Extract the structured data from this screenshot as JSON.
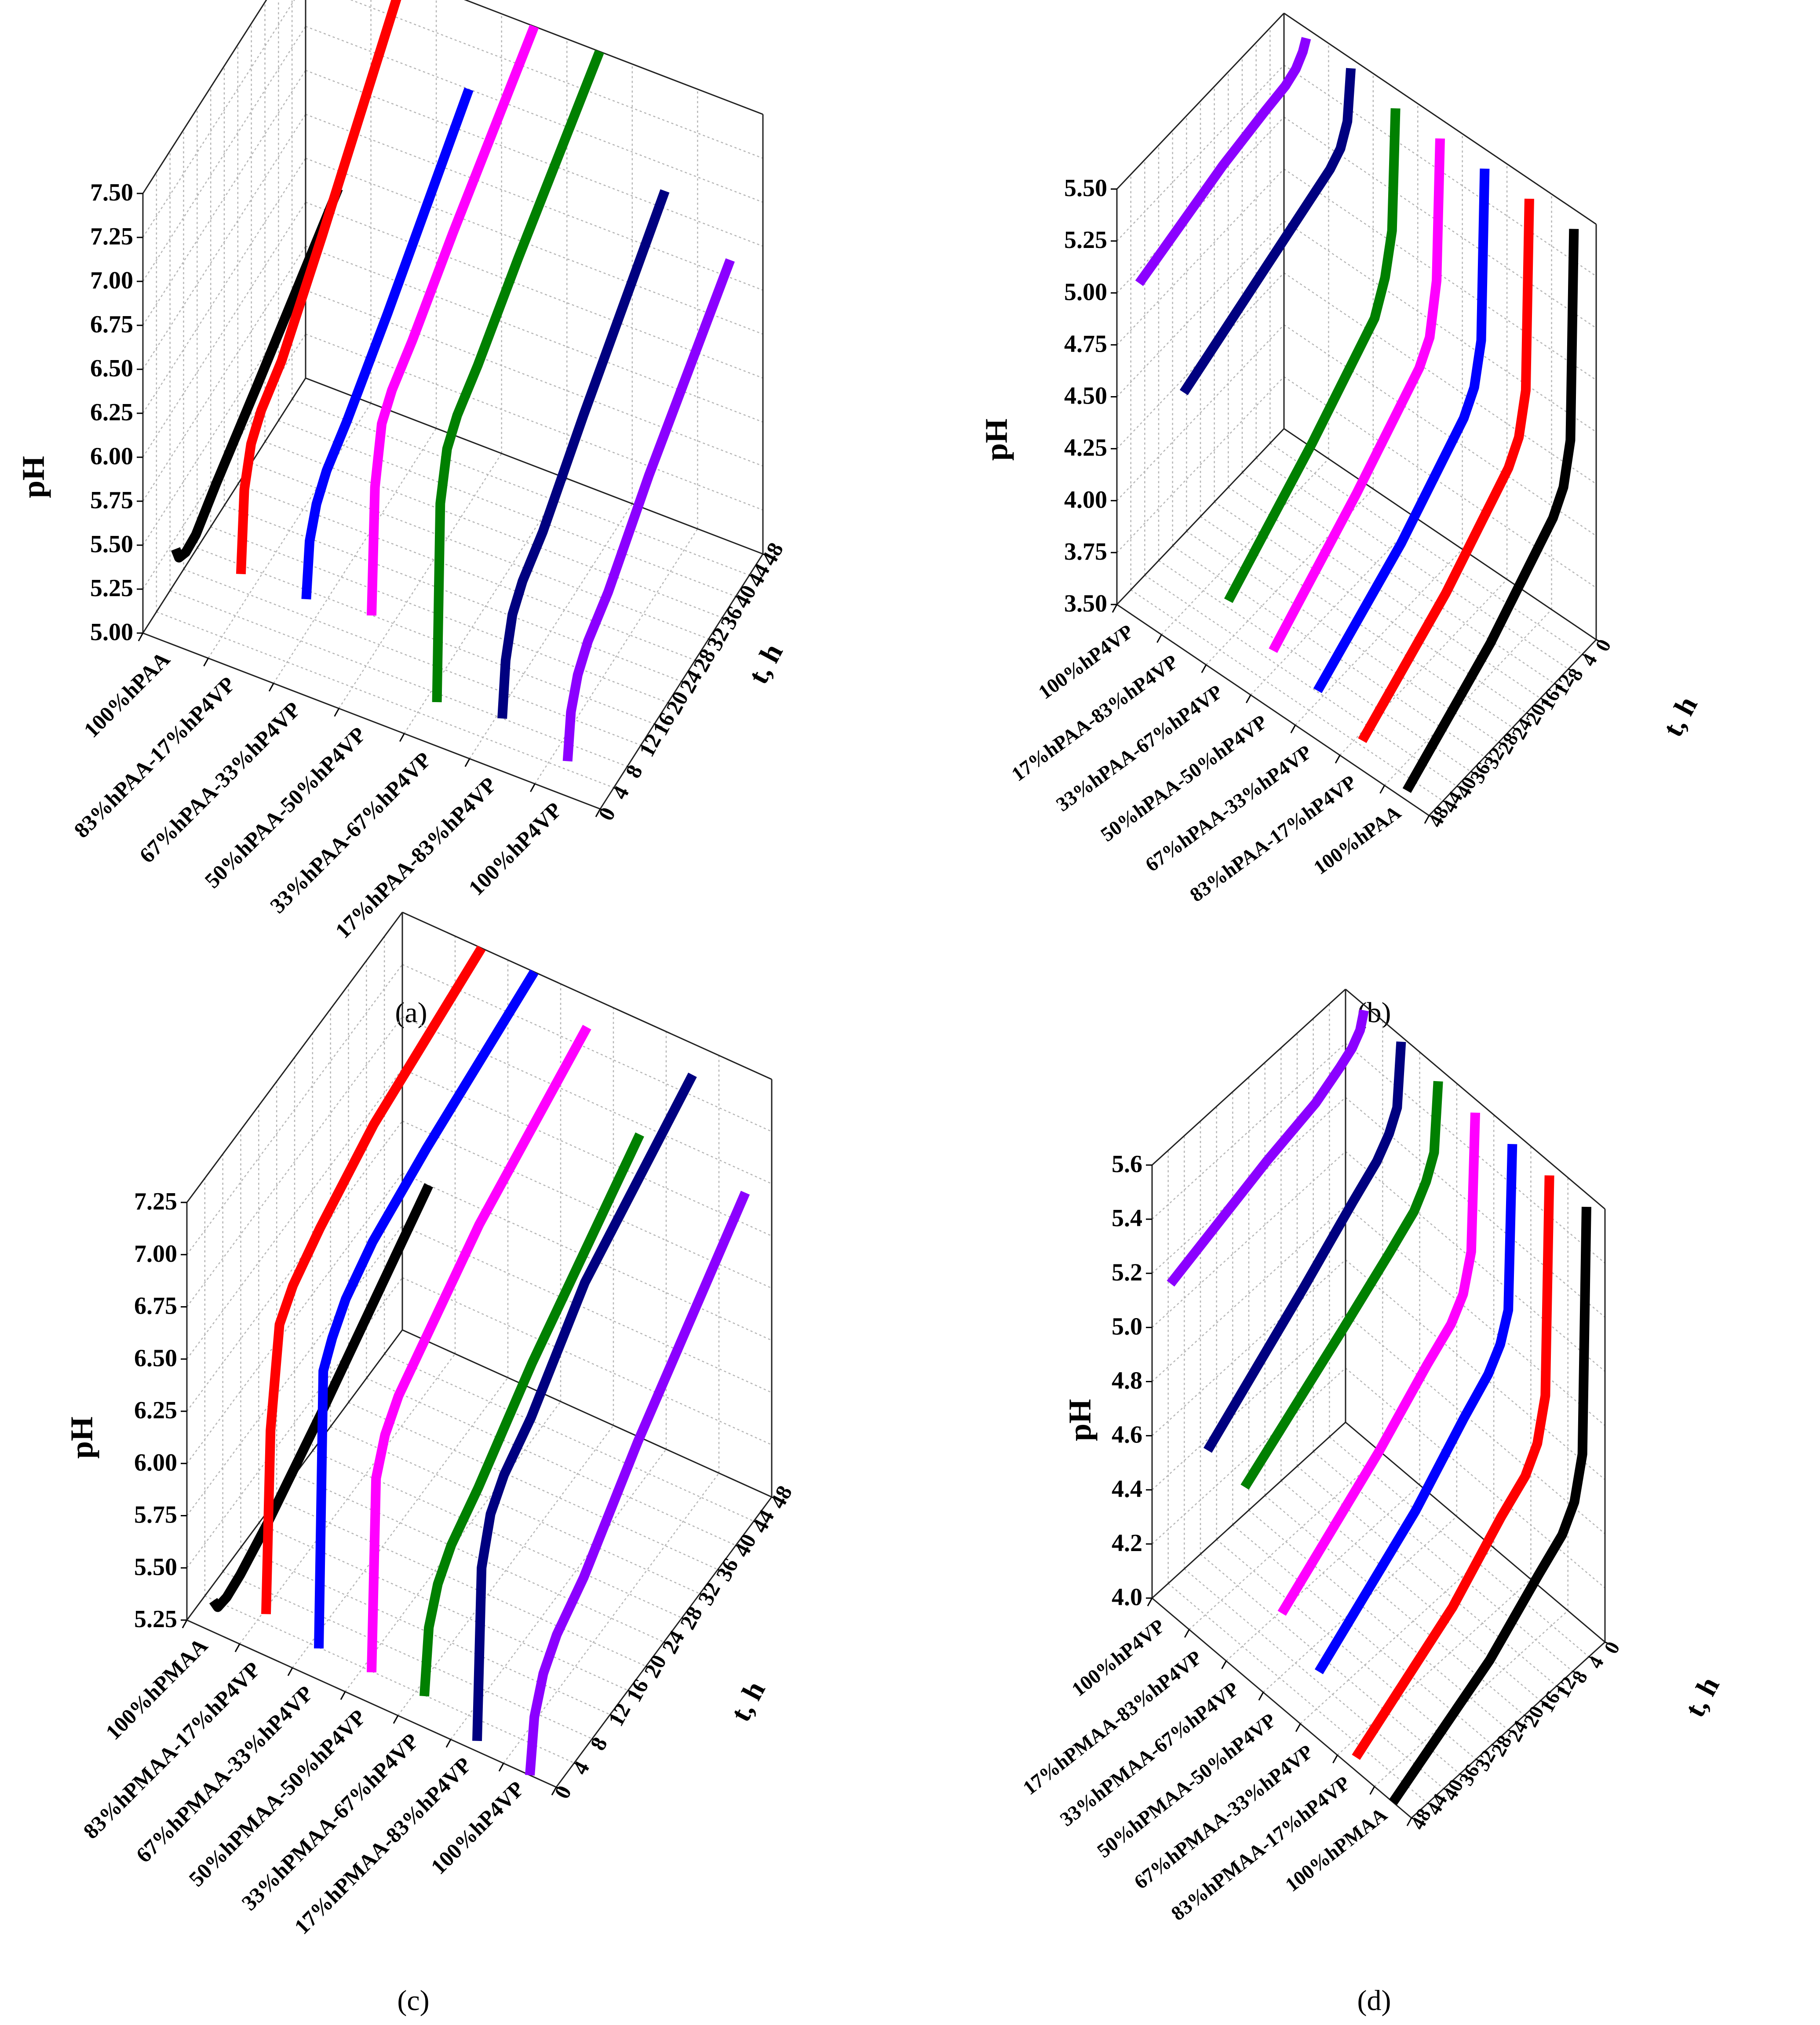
{
  "figure": {
    "time_ticks": [
      "0",
      "4",
      "8",
      "12",
      "16",
      "20",
      "24",
      "28",
      "32",
      "36",
      "40",
      "44",
      "48"
    ],
    "time_label": "t, h"
  },
  "chart_data": [
    {
      "type": "line3d",
      "caption": "(a)",
      "ylabel": "pH",
      "time_axis_label": "t, h",
      "ylim": [
        5.0,
        7.5
      ],
      "y_ticks": [
        "5.00",
        "5.25",
        "5.50",
        "5.75",
        "6.00",
        "6.25",
        "6.50",
        "6.75",
        "7.00",
        "7.25",
        "7.50"
      ],
      "t_ticks": [
        "0",
        "4",
        "8",
        "12",
        "16",
        "20",
        "24",
        "28",
        "32",
        "36",
        "40",
        "44",
        "48"
      ],
      "categories": [
        "100%hPAA",
        "83%hPAA-17%hP4VP",
        "67%hPAA-33%hP4VP",
        "50%hPAA-50%hP4VP",
        "33%hPAA-67%hP4VP",
        "17%hPAA-83%hP4VP",
        "100%hP4VP"
      ],
      "series": [
        {
          "name": "100%hPAA",
          "color": "#000000",
          "t": [
            0,
            1,
            3,
            6,
            12,
            24,
            48
          ],
          "values": [
            5.55,
            5.47,
            5.44,
            5.45,
            5.56,
            5.75,
            6.15
          ]
        },
        {
          "name": "83%hPAA-17%hP4VP",
          "color": "#ff0000",
          "t": [
            0,
            1,
            3,
            6,
            12,
            24,
            48
          ],
          "values": [
            5.55,
            6.0,
            6.2,
            6.3,
            6.4,
            6.75,
            7.5
          ]
        },
        {
          "name": "67%hPAA-33%hP4VP",
          "color": "#0000ff",
          "t": [
            0,
            1,
            3,
            6,
            12,
            24,
            48
          ],
          "values": [
            5.55,
            5.85,
            6.0,
            6.1,
            6.2,
            6.45,
            7.0
          ]
        },
        {
          "name": "50%hPAA-50%hP4VP",
          "color": "#ff00ff",
          "t": [
            0,
            1,
            3,
            6,
            12,
            24,
            48
          ],
          "values": [
            5.6,
            6.3,
            6.6,
            6.7,
            6.8,
            7.05,
            7.5
          ]
        },
        {
          "name": "33%hPAA-67%hP4VP",
          "color": "#008000",
          "t": [
            0,
            1,
            3,
            6,
            12,
            24,
            48
          ],
          "values": [
            5.25,
            6.35,
            6.6,
            6.7,
            6.8,
            7.05,
            7.5
          ]
        },
        {
          "name": "17%hPAA-83%hP4VP",
          "color": "#000080",
          "t": [
            0,
            1,
            3,
            6,
            12,
            24,
            48
          ],
          "values": [
            5.3,
            5.6,
            5.8,
            5.9,
            6.0,
            6.3,
            6.85
          ]
        },
        {
          "name": "100%hP4VP",
          "color": "#8b00ff",
          "t": [
            0,
            1,
            3,
            6,
            12,
            24,
            48
          ],
          "values": [
            5.2,
            5.45,
            5.6,
            5.7,
            5.8,
            6.1,
            6.6
          ]
        }
      ]
    },
    {
      "type": "line3d",
      "caption": "(b)",
      "ylabel": "pH",
      "time_axis_label": "t, h",
      "ylim": [
        3.5,
        5.6
      ],
      "y_ticks": [
        "3.50",
        "3.75",
        "4.00",
        "4.25",
        "4.50",
        "4.75",
        "5.00",
        "5.25",
        "5.50"
      ],
      "t_ticks": [
        "0",
        "4",
        "8",
        "12",
        "16",
        "20",
        "24",
        "28",
        "32",
        "36",
        "40",
        "44",
        "48"
      ],
      "categories": [
        "100%hP4VP",
        "17%hPAA-83%hP4VP",
        "33%hPAA-67%hP4VP",
        "50%hPAA-50%hP4VP",
        "67%hPAA-33%hP4VP",
        "83%hPAA-17%hP4VP",
        "100%hPAA"
      ],
      "series": [
        {
          "name": "100%hP4VP",
          "color": "#8b00ff",
          "t": [
            0,
            1,
            3,
            6,
            12,
            24,
            48
          ],
          "values": [
            5.55,
            5.5,
            5.45,
            5.42,
            5.4,
            5.35,
            5.2
          ]
        },
        {
          "name": "17%hPAA-83%hP4VP",
          "color": "#000080",
          "t": [
            0,
            1,
            3,
            6,
            12,
            24,
            48
          ],
          "values": [
            5.55,
            5.3,
            5.2,
            5.15,
            5.1,
            5.0,
            4.8
          ]
        },
        {
          "name": "33%hPAA-67%hP4VP",
          "color": "#008000",
          "t": [
            0,
            1,
            3,
            6,
            12,
            24,
            48
          ],
          "values": [
            5.5,
            4.9,
            4.7,
            4.55,
            4.45,
            4.25,
            3.9
          ]
        },
        {
          "name": "50%hPAA-50%hP4VP",
          "color": "#ff00ff",
          "t": [
            0,
            1,
            3,
            6,
            12,
            24,
            48
          ],
          "values": [
            5.5,
            4.8,
            4.55,
            4.45,
            4.35,
            4.15,
            3.8
          ]
        },
        {
          "name": "67%hPAA-33%hP4VP",
          "color": "#0000ff",
          "t": [
            0,
            1,
            3,
            6,
            12,
            24,
            48
          ],
          "values": [
            5.5,
            4.65,
            4.45,
            4.35,
            4.25,
            4.05,
            3.75
          ]
        },
        {
          "name": "83%hPAA-17%hP4VP",
          "color": "#ff0000",
          "t": [
            0,
            1,
            3,
            6,
            12,
            24,
            48
          ],
          "values": [
            5.5,
            4.55,
            4.35,
            4.25,
            4.15,
            3.95,
            3.65
          ]
        },
        {
          "name": "100%hPAA",
          "color": "#000000",
          "t": [
            0,
            1,
            3,
            6,
            12,
            24,
            48
          ],
          "values": [
            5.5,
            4.45,
            4.25,
            4.15,
            4.05,
            3.85,
            3.55
          ]
        }
      ]
    },
    {
      "type": "line3d",
      "caption": "(c)",
      "ylabel": "pH",
      "time_axis_label": "t, h",
      "ylim": [
        5.25,
        7.25
      ],
      "y_ticks": [
        "5.25",
        "5.50",
        "5.75",
        "6.00",
        "6.25",
        "6.50",
        "6.75",
        "7.00",
        "7.25"
      ],
      "t_ticks": [
        "0",
        "4",
        "8",
        "12",
        "16",
        "20",
        "24",
        "28",
        "32",
        "36",
        "40",
        "44",
        "48"
      ],
      "categories": [
        "100%hPMAA",
        "83%hPMAA-17%hP4VP",
        "67%hPMAA-33%hP4VP",
        "50%hPMAA-50%hP4VP",
        "33%hPMAA-67%hP4VP",
        "17%hPMAA-83%hP4VP",
        "100%hP4VP"
      ],
      "series": [
        {
          "name": "100%hPMAA",
          "color": "#000000",
          "t": [
            0,
            1,
            3,
            6,
            12,
            24,
            48
          ],
          "values": [
            5.4,
            5.34,
            5.33,
            5.35,
            5.42,
            5.6,
            6.0
          ]
        },
        {
          "name": "83%hPMAA-17%hP4VP",
          "color": "#ff0000",
          "t": [
            0,
            1,
            3,
            6,
            12,
            24,
            48
          ],
          "values": [
            5.45,
            6.3,
            6.75,
            6.85,
            6.95,
            7.1,
            7.25
          ]
        },
        {
          "name": "67%hPMAA-33%hP4VP",
          "color": "#0000ff",
          "t": [
            0,
            1,
            3,
            6,
            12,
            24,
            48
          ],
          "values": [
            5.4,
            6.7,
            6.8,
            6.9,
            7.0,
            7.1,
            7.25
          ]
        },
        {
          "name": "50%hPMAA-50%hP4VP",
          "color": "#ff00ff",
          "t": [
            0,
            1,
            3,
            6,
            12,
            24,
            48
          ],
          "values": [
            5.4,
            6.3,
            6.45,
            6.55,
            6.65,
            6.85,
            7.1
          ]
        },
        {
          "name": "33%hPMAA-67%hP4VP",
          "color": "#008000",
          "t": [
            0,
            1,
            3,
            6,
            12,
            24,
            48
          ],
          "values": [
            5.4,
            5.7,
            5.85,
            5.95,
            6.05,
            6.3,
            6.7
          ]
        },
        {
          "name": "17%hPMAA-83%hP4VP",
          "color": "#000080",
          "t": [
            0,
            1,
            3,
            6,
            12,
            24,
            48
          ],
          "values": [
            5.3,
            6.1,
            6.3,
            6.4,
            6.5,
            6.8,
            7.1
          ]
        },
        {
          "name": "100%hP4VP",
          "color": "#8b00ff",
          "t": [
            0,
            1,
            3,
            6,
            12,
            24,
            48
          ],
          "values": [
            5.25,
            5.5,
            5.65,
            5.75,
            5.85,
            6.15,
            6.65
          ]
        }
      ]
    },
    {
      "type": "line3d",
      "caption": "(d)",
      "ylabel": "pH",
      "time_axis_label": "t, h",
      "ylim": [
        4.0,
        5.6
      ],
      "y_ticks": [
        "4.0",
        "4.2",
        "4.4",
        "4.6",
        "4.8",
        "5.0",
        "5.2",
        "5.4",
        "5.6"
      ],
      "t_ticks": [
        "0",
        "4",
        "8",
        "12",
        "16",
        "20",
        "24",
        "28",
        "32",
        "36",
        "40",
        "44",
        "48"
      ],
      "categories": [
        "100%hP4VP",
        "17%hPMAA-83%hP4VP",
        "33%hPMAA-67%hP4VP",
        "50%hPMAA-50%hP4VP",
        "67%hPMAA-33%hP4VP",
        "83%hPMAA-17%hP4VP",
        "100%hPMAA"
      ],
      "series": [
        {
          "name": "100%hP4VP",
          "color": "#8b00ff",
          "t": [
            0,
            1,
            3,
            6,
            12,
            24,
            48
          ],
          "values": [
            5.58,
            5.52,
            5.48,
            5.45,
            5.4,
            5.35,
            5.22
          ]
        },
        {
          "name": "17%hPMAA-83%hP4VP",
          "color": "#000080",
          "t": [
            0,
            1,
            3,
            6,
            12,
            24,
            48
          ],
          "values": [
            5.58,
            5.35,
            5.28,
            5.22,
            5.15,
            5.0,
            4.72
          ]
        },
        {
          "name": "33%hPMAA-67%hP4VP",
          "color": "#008000",
          "t": [
            0,
            1,
            3,
            6,
            12,
            24,
            48
          ],
          "values": [
            5.55,
            5.3,
            5.22,
            5.15,
            5.08,
            4.95,
            4.7
          ]
        },
        {
          "name": "50%hPMAA-50%hP4VP",
          "color": "#ff00ff",
          "t": [
            0,
            1,
            3,
            6,
            12,
            24,
            48
          ],
          "values": [
            5.55,
            5.05,
            4.92,
            4.85,
            4.78,
            4.62,
            4.35
          ]
        },
        {
          "name": "67%hPMAA-33%hP4VP",
          "color": "#0000ff",
          "t": [
            0,
            1,
            3,
            6,
            12,
            24,
            48
          ],
          "values": [
            5.55,
            4.95,
            4.85,
            4.78,
            4.7,
            4.52,
            4.25
          ]
        },
        {
          "name": "83%hPMAA-17%hP4VP",
          "color": "#ff0000",
          "t": [
            0,
            1,
            3,
            6,
            12,
            24,
            48
          ],
          "values": [
            5.55,
            4.75,
            4.6,
            4.52,
            4.45,
            4.28,
            4.05
          ]
        },
        {
          "name": "100%hPMAA",
          "color": "#000000",
          "t": [
            0,
            1,
            3,
            6,
            12,
            24,
            48
          ],
          "values": [
            5.55,
            4.65,
            4.5,
            4.42,
            4.35,
            4.2,
            4.0
          ]
        }
      ]
    }
  ]
}
